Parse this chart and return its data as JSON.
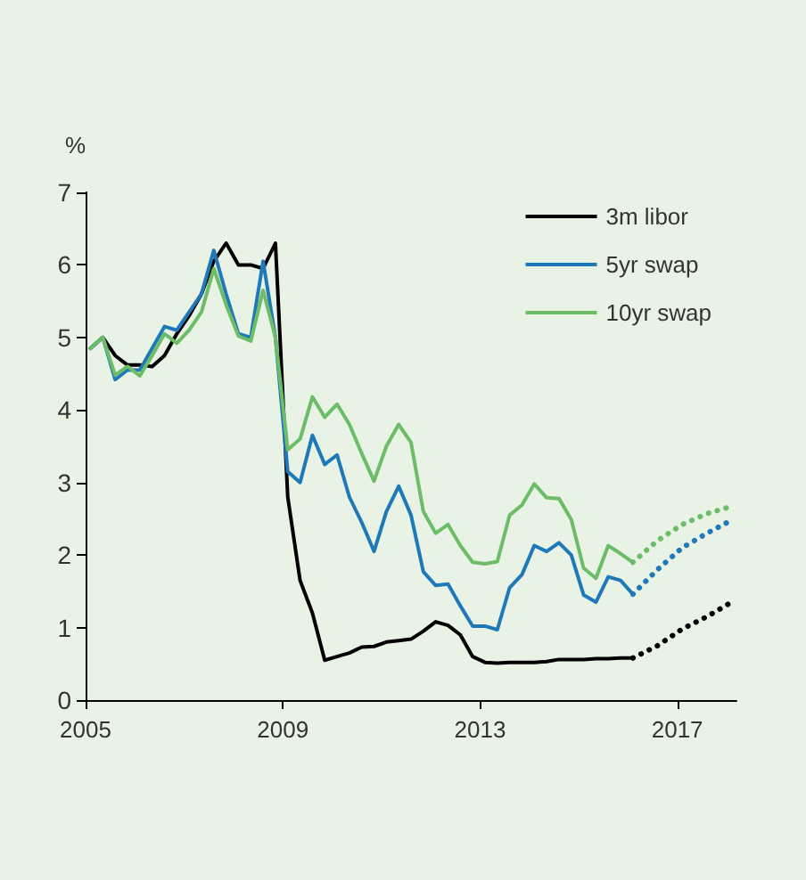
{
  "chart_data": {
    "type": "line",
    "ylabel": "%",
    "xlim": [
      2005,
      2018.2
    ],
    "xticks": [
      2005,
      2009,
      2013,
      2017
    ],
    "ylim": [
      0,
      7
    ],
    "yticks": [
      0,
      1,
      2,
      3,
      4,
      5,
      6,
      7
    ],
    "grid": false,
    "legend": "top right",
    "marker": "none",
    "series": [
      {
        "name": "3m libor",
        "color": "#000000",
        "line_style": "solid",
        "values": [
          4.85,
          5.0,
          4.75,
          4.62,
          4.62,
          4.6,
          4.75,
          5.05,
          5.3,
          5.6,
          6.05,
          6.3,
          6.0,
          6.0,
          5.95,
          6.3,
          2.8,
          1.65,
          1.2,
          0.55,
          0.6,
          0.65,
          0.73,
          0.74,
          0.8,
          0.82,
          0.84,
          0.95,
          1.08,
          1.03,
          0.9,
          0.6,
          0.52,
          0.51,
          0.52,
          0.52,
          0.52,
          0.53,
          0.56,
          0.56,
          0.56,
          0.57,
          0.57,
          0.58,
          0.58
        ]
      },
      {
        "name": "5yr swap",
        "color": "#1f78b8",
        "line_style": "solid",
        "values": [
          4.85,
          5.0,
          4.42,
          4.55,
          4.55,
          4.85,
          5.15,
          5.1,
          5.35,
          5.6,
          6.2,
          5.6,
          5.05,
          5.0,
          6.05,
          5.0,
          3.15,
          3.0,
          3.65,
          3.25,
          3.38,
          2.8,
          2.45,
          2.05,
          2.6,
          2.95,
          2.55,
          1.77,
          1.58,
          1.6,
          1.3,
          1.02,
          1.02,
          0.97,
          1.55,
          1.73,
          2.13,
          2.05,
          2.17,
          2.0,
          1.45,
          1.35,
          1.7,
          1.65,
          1.46
        ]
      },
      {
        "name": "10yr swap",
        "color": "#6dbd68",
        "line_style": "solid",
        "values": [
          4.85,
          5.0,
          4.48,
          4.6,
          4.47,
          4.75,
          5.05,
          4.92,
          5.1,
          5.35,
          5.95,
          5.45,
          5.02,
          4.95,
          5.65,
          5.0,
          3.45,
          3.6,
          4.18,
          3.9,
          4.08,
          3.8,
          3.4,
          3.02,
          3.5,
          3.8,
          3.55,
          2.6,
          2.3,
          2.42,
          2.13,
          1.9,
          1.88,
          1.91,
          2.55,
          2.69,
          2.98,
          2.79,
          2.78,
          2.49,
          1.82,
          1.68,
          2.13,
          2.02,
          1.9
        ]
      },
      {
        "color": "#000000",
        "line_style": "dotted",
        "x": [
          2016.1,
          2016.6,
          2017.1,
          2017.6,
          2018.1
        ],
        "values": [
          0.58,
          0.75,
          0.98,
          1.15,
          1.35
        ]
      },
      {
        "color": "#1f78b8",
        "line_style": "dotted",
        "x": [
          2016.1,
          2016.6,
          2017.1,
          2017.6,
          2018.1
        ],
        "values": [
          1.46,
          1.8,
          2.1,
          2.3,
          2.48
        ]
      },
      {
        "color": "#6dbd68",
        "line_style": "dotted",
        "x": [
          2016.1,
          2016.6,
          2017.1,
          2017.6,
          2018.1
        ],
        "values": [
          1.9,
          2.2,
          2.42,
          2.57,
          2.67
        ]
      }
    ],
    "x": [
      2005.1,
      2005.35,
      2005.6,
      2005.85,
      2006.1,
      2006.35,
      2006.6,
      2006.85,
      2007.1,
      2007.35,
      2007.6,
      2007.85,
      2008.1,
      2008.35,
      2008.6,
      2008.85,
      2009.1,
      2009.35,
      2009.6,
      2009.85,
      2010.1,
      2010.35,
      2010.6,
      2010.85,
      2011.1,
      2011.35,
      2011.6,
      2011.85,
      2012.1,
      2012.35,
      2012.6,
      2012.85,
      2013.1,
      2013.35,
      2013.6,
      2013.85,
      2014.1,
      2014.35,
      2014.6,
      2014.85,
      2015.1,
      2015.35,
      2015.6,
      2015.85,
      2016.1
    ]
  }
}
